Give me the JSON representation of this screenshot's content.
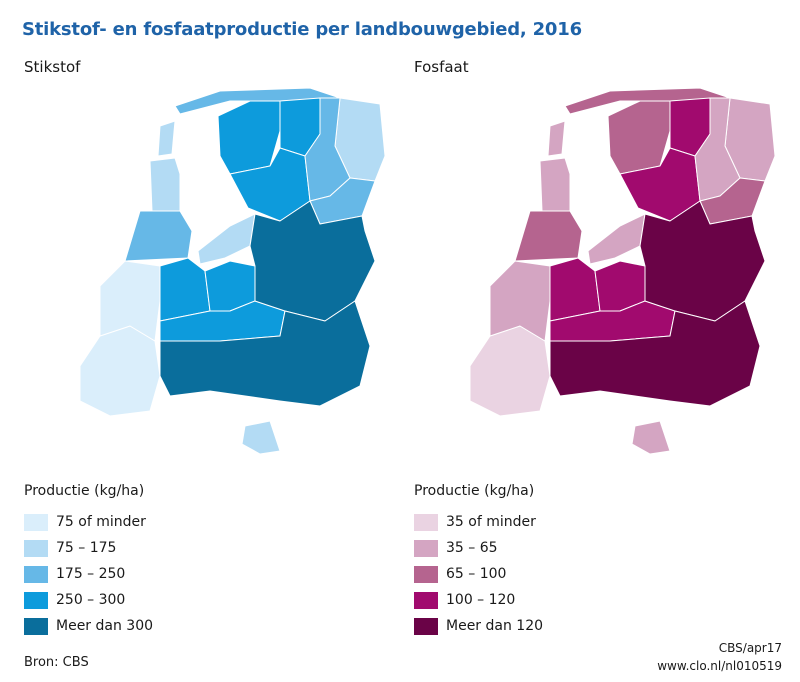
{
  "title": "Stikstof- en fosfaatproductie per landbouwgebied, 2016",
  "panels": [
    {
      "label": "Stikstof",
      "legend_title": "Productie (kg/ha)",
      "classes": [
        {
          "label": "75 of minder",
          "color": "#daeefb"
        },
        {
          "label": "75 – 175",
          "color": "#b3dbf4"
        },
        {
          "label": "175 – 250",
          "color": "#66b8e7"
        },
        {
          "label": "250 – 300",
          "color": "#0d9bdc"
        },
        {
          "label": "Meer dan 300",
          "color": "#0a6e9c"
        }
      ]
    },
    {
      "label": "Fosfaat",
      "legend_title": "Productie (kg/ha)",
      "classes": [
        {
          "label": "35 of minder",
          "color": "#ead3e2"
        },
        {
          "label": "35 – 65",
          "color": "#d4a5c2"
        },
        {
          "label": "65 – 100",
          "color": "#b5648f"
        },
        {
          "label": "100 – 120",
          "color": "#a10a6e"
        },
        {
          "label": "Meer dan 120",
          "color": "#6a0347"
        }
      ]
    }
  ],
  "regions": [
    {
      "id": "wadden-islands",
      "classes": [
        2,
        2
      ]
    },
    {
      "id": "texel",
      "classes": [
        1,
        1
      ]
    },
    {
      "id": "noord-holland-noord",
      "classes": [
        1,
        1
      ]
    },
    {
      "id": "noord-holland-zuid",
      "classes": [
        2,
        2
      ]
    },
    {
      "id": "friesland-west",
      "classes": [
        3,
        2
      ]
    },
    {
      "id": "friesland-noord",
      "classes": [
        3,
        3
      ]
    },
    {
      "id": "friesland-zuid",
      "classes": [
        3,
        3
      ]
    },
    {
      "id": "groningen-oost",
      "classes": [
        1,
        1
      ]
    },
    {
      "id": "groningen-west",
      "classes": [
        2,
        1
      ]
    },
    {
      "id": "drenthe",
      "classes": [
        2,
        2
      ]
    },
    {
      "id": "ijsselmeerpolders",
      "classes": [
        1,
        1
      ]
    },
    {
      "id": "zeeland",
      "classes": [
        0,
        0
      ]
    },
    {
      "id": "zuid-holland-zuid",
      "classes": [
        0,
        1
      ]
    },
    {
      "id": "zuid-holland-oost",
      "classes": [
        3,
        3
      ]
    },
    {
      "id": "utrecht",
      "classes": [
        3,
        3
      ]
    },
    {
      "id": "rivierengebied",
      "classes": [
        3,
        3
      ]
    },
    {
      "id": "overijssel-gelderland-oost",
      "classes": [
        4,
        4
      ]
    },
    {
      "id": "brabant-limburg",
      "classes": [
        4,
        4
      ]
    },
    {
      "id": "zuid-limburg",
      "classes": [
        1,
        1
      ]
    }
  ],
  "source": "Bron: CBS",
  "credit_line1": "CBS/apr17",
  "credit_line2": "www.clo.nl/nl010519"
}
